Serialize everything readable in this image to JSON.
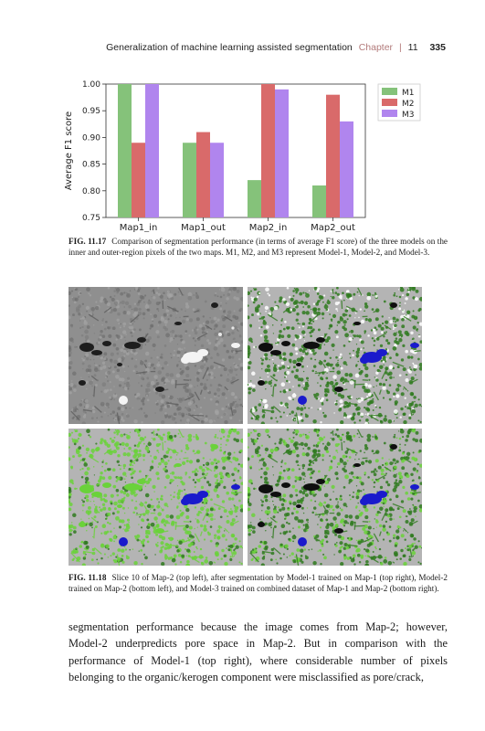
{
  "header": {
    "title": "Generalization of machine learning assisted segmentation",
    "chapter_word": "Chapter",
    "chapter_number": "11",
    "page_number": "335"
  },
  "chart_data": {
    "type": "bar",
    "categories": [
      "Map1_in",
      "Map1_out",
      "Map2_in",
      "Map2_out"
    ],
    "series": [
      {
        "name": "M1",
        "values": [
          1.0,
          0.89,
          0.82,
          0.81
        ],
        "color": "#85c27a"
      },
      {
        "name": "M2",
        "values": [
          0.89,
          0.91,
          1.0,
          0.98
        ],
        "color": "#d96a6a"
      },
      {
        "name": "M3",
        "values": [
          1.0,
          0.89,
          0.99,
          0.93
        ],
        "color": "#b085ee"
      }
    ],
    "title": "",
    "xlabel": "",
    "ylabel": "Average F1 score",
    "ylim": [
      0.75,
      1.0
    ],
    "yticks": [
      "0.75",
      "0.80",
      "0.85",
      "0.90",
      "0.95",
      "1.00"
    ],
    "legend": "top-right",
    "grid": false
  },
  "fig1": {
    "label": "FIG. 11.17",
    "text": "Comparison of segmentation performance (in terms of average F1 score) of the three models on the inner and outer-region pixels of the two maps. M1, M2, and M3 represent Model-1, Model-2, and Model-3."
  },
  "panels": {
    "gray": "#8f8f8f",
    "seg_gray": "#b4b4b4",
    "pore_blue": "#1a1acc",
    "kerogen_green": "#6ad23a",
    "dark_green": "#2f7a1e"
  },
  "fig2": {
    "label": "FIG. 11.18",
    "text": "Slice 10 of Map-2 (top left), after segmentation by Model-1 trained on Map-1 (top right), Model-2 trained on Map-2 (bottom left), and Model-3 trained on combined dataset of Map-1 and Map-2 (bottom right)."
  },
  "body": {
    "text": "segmentation performance because the image comes from Map-2; however, Model-2 underpredicts pore space in Map-2. But in comparison with the performance of Model-1 (top right), where considerable number of pixels belonging to the organic/kerogen component were misclassified as pore/crack,"
  }
}
